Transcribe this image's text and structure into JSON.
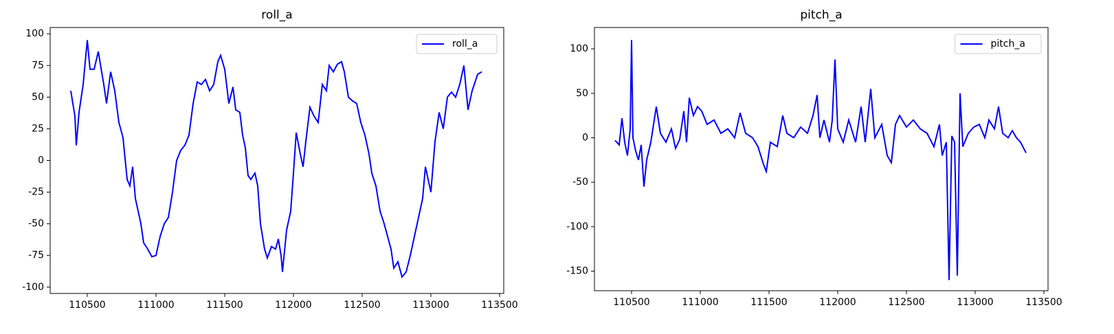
{
  "chart_data": [
    {
      "type": "line",
      "title": "roll_a",
      "x": [
        110380,
        110410,
        110420,
        110440,
        110470,
        110500,
        110520,
        110550,
        110580,
        110620,
        110640,
        110670,
        110700,
        110730,
        110760,
        110790,
        110810,
        110830,
        110850,
        110870,
        110890,
        110910,
        110940,
        110970,
        111000,
        111030,
        111060,
        111090,
        111120,
        111150,
        111180,
        111210,
        111240,
        111270,
        111300,
        111330,
        111360,
        111390,
        111420,
        111450,
        111470,
        111500,
        111530,
        111560,
        111580,
        111610,
        111630,
        111650,
        111670,
        111690,
        111720,
        111740,
        111760,
        111790,
        111810,
        111840,
        111870,
        111890,
        111910,
        111920,
        111950,
        111980,
        112000,
        112020,
        112050,
        112070,
        112090,
        112120,
        112150,
        112180,
        112210,
        112240,
        112260,
        112290,
        112320,
        112350,
        112370,
        112400,
        112430,
        112460,
        112490,
        112520,
        112550,
        112570,
        112600,
        112630,
        112660,
        112690,
        112710,
        112730,
        112760,
        112790,
        112820,
        112850,
        112880,
        112910,
        112940,
        112960,
        112980,
        113000,
        113030,
        113060,
        113090,
        113120,
        113150,
        113180,
        113210,
        113240,
        113270,
        113300,
        113340,
        113370
      ],
      "series": [
        {
          "name": "roll_a",
          "color": "#0000ff",
          "values": [
            55,
            35,
            12,
            38,
            60,
            95,
            72,
            72,
            86,
            60,
            45,
            70,
            55,
            30,
            18,
            -15,
            -20,
            -5,
            -30,
            -40,
            -50,
            -65,
            -70,
            -76,
            -75,
            -60,
            -50,
            -45,
            -25,
            0,
            8,
            12,
            20,
            45,
            62,
            60,
            64,
            55,
            60,
            78,
            83,
            72,
            45,
            58,
            40,
            38,
            20,
            10,
            -12,
            -15,
            -10,
            -20,
            -50,
            -70,
            -77,
            -68,
            -70,
            -62,
            -75,
            -88,
            -55,
            -40,
            -10,
            22,
            5,
            -5,
            15,
            42,
            35,
            30,
            60,
            55,
            75,
            70,
            76,
            78,
            70,
            50,
            47,
            45,
            30,
            20,
            5,
            -10,
            -20,
            -40,
            -50,
            -62,
            -70,
            -85,
            -80,
            -92,
            -88,
            -75,
            -60,
            -45,
            -30,
            -5,
            -15,
            -25,
            15,
            38,
            25,
            50,
            54,
            50,
            60,
            75,
            40,
            55,
            68,
            70
          ]
        }
      ],
      "xlim": [
        110230,
        113530
      ],
      "ylim": [
        -105,
        105
      ],
      "xticks": [
        110500,
        111000,
        111500,
        112000,
        112500,
        113000,
        113500
      ],
      "yticks": [
        -100,
        -75,
        -50,
        -25,
        0,
        25,
        50,
        75,
        100
      ],
      "legend": "upper right"
    },
    {
      "type": "line",
      "title": "pitch_a",
      "x": [
        110380,
        110410,
        110430,
        110450,
        110470,
        110490,
        110500,
        110510,
        110530,
        110550,
        110570,
        110590,
        110610,
        110640,
        110680,
        110710,
        110750,
        110790,
        110820,
        110850,
        110880,
        110900,
        110920,
        110950,
        110980,
        111010,
        111050,
        111100,
        111150,
        111200,
        111250,
        111290,
        111330,
        111380,
        111420,
        111460,
        111480,
        111510,
        111560,
        111600,
        111630,
        111680,
        111730,
        111780,
        111820,
        111850,
        111870,
        111900,
        111940,
        111960,
        111980,
        112000,
        112040,
        112080,
        112130,
        112170,
        112200,
        112240,
        112270,
        112320,
        112360,
        112390,
        112420,
        112450,
        112500,
        112550,
        112600,
        112650,
        112700,
        112740,
        112760,
        112790,
        112810,
        112830,
        112850,
        112870,
        112890,
        112910,
        112950,
        112990,
        113030,
        113070,
        113100,
        113140,
        113170,
        113200,
        113240,
        113270,
        113300,
        113330,
        113370
      ],
      "series": [
        {
          "name": "pitch_a",
          "color": "#0000ff",
          "values": [
            -3,
            -8,
            22,
            -5,
            -20,
            10,
            110,
            0,
            -15,
            -25,
            -8,
            -55,
            -25,
            -5,
            35,
            5,
            -5,
            10,
            -12,
            -2,
            30,
            -5,
            45,
            25,
            35,
            30,
            15,
            20,
            5,
            10,
            0,
            28,
            5,
            0,
            -10,
            -30,
            -38,
            -5,
            -10,
            25,
            5,
            0,
            12,
            5,
            25,
            48,
            0,
            20,
            -5,
            20,
            88,
            10,
            -5,
            20,
            -5,
            35,
            -5,
            55,
            0,
            15,
            -20,
            -28,
            15,
            25,
            12,
            20,
            10,
            5,
            -10,
            15,
            -20,
            -5,
            -160,
            2,
            -5,
            -155,
            50,
            -10,
            5,
            12,
            15,
            0,
            20,
            10,
            35,
            5,
            0,
            8,
            0,
            -5,
            -17
          ]
        }
      ],
      "xlim": [
        110230,
        113530
      ],
      "ylim": [
        -172,
        124
      ],
      "xticks": [
        110500,
        111000,
        111500,
        112000,
        112500,
        113000,
        113500
      ],
      "yticks": [
        -150,
        -100,
        -50,
        0,
        50,
        100
      ],
      "legend": "upper right"
    }
  ]
}
